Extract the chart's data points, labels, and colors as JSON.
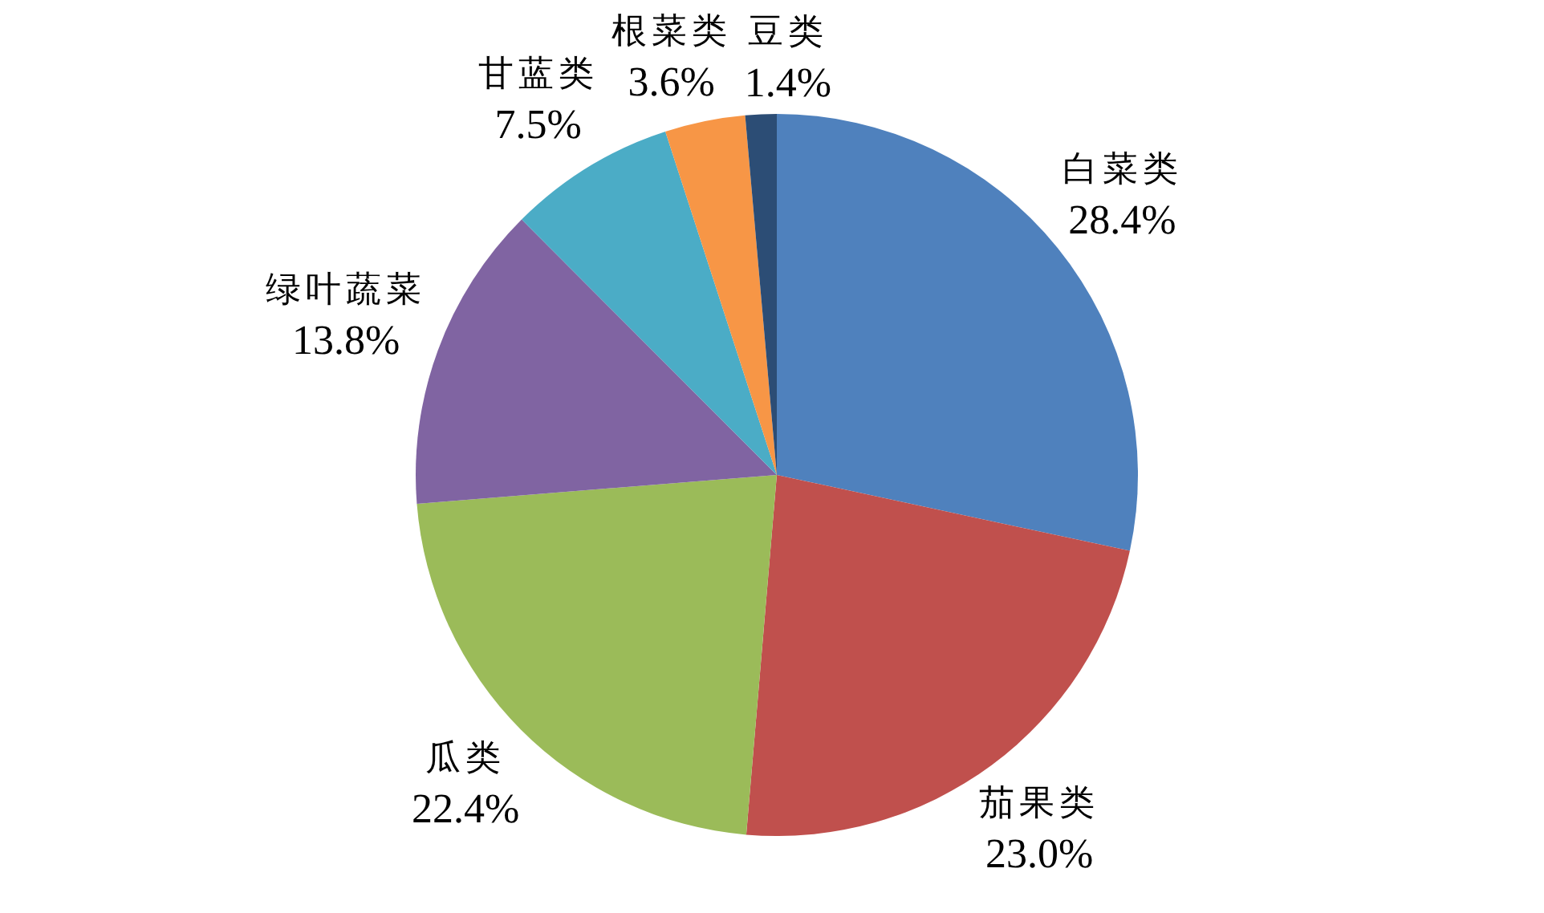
{
  "chart_data": {
    "type": "pie",
    "categories": [
      "白菜类",
      "茄果类",
      "瓜类",
      "绿叶蔬菜",
      "甘蓝类",
      "根菜类",
      "豆类"
    ],
    "values": [
      28.4,
      23.0,
      22.4,
      13.8,
      7.5,
      3.6,
      1.4
    ],
    "colors": [
      "#4f81bd",
      "#c0504d",
      "#9bbb59",
      "#8064a2",
      "#4bacc6",
      "#f79646",
      "#2c4d75"
    ],
    "value_labels": [
      "28.4%",
      "23.0%",
      "22.4%",
      "13.8%",
      "7.5%",
      "3.6%",
      "1.4%"
    ]
  }
}
